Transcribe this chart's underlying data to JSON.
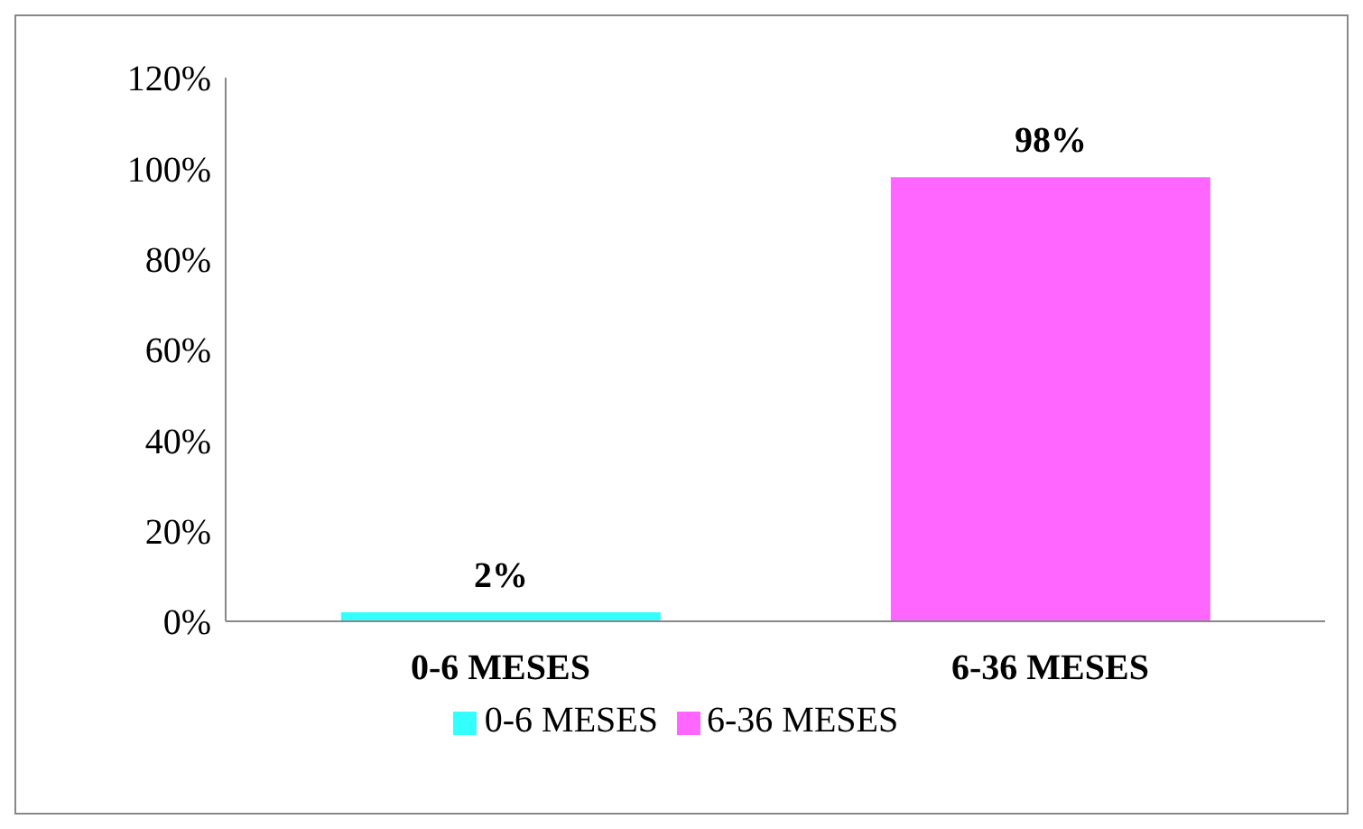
{
  "chart_data": {
    "type": "bar",
    "categories": [
      "0-6 MESES",
      "6-36 MESES"
    ],
    "stacked": true,
    "series": [
      {
        "name": "0-6 MESES",
        "color": "#33ffff",
        "values": [
          2,
          null
        ],
        "value_labels": [
          "2%",
          null
        ]
      },
      {
        "name": "6-36 MESES",
        "color": "#ff66ff",
        "values": [
          null,
          98
        ],
        "value_labels": [
          null,
          "98%"
        ]
      }
    ],
    "ylim": [
      0,
      120
    ],
    "yticks": [
      {
        "value": 0,
        "label": "0%"
      },
      {
        "value": 20,
        "label": "20%"
      },
      {
        "value": 40,
        "label": "40%"
      },
      {
        "value": 60,
        "label": "60%"
      },
      {
        "value": 80,
        "label": "80%"
      },
      {
        "value": 100,
        "label": "100%"
      },
      {
        "value": 120,
        "label": "120%"
      }
    ],
    "grid": false,
    "legend": "bottom"
  }
}
